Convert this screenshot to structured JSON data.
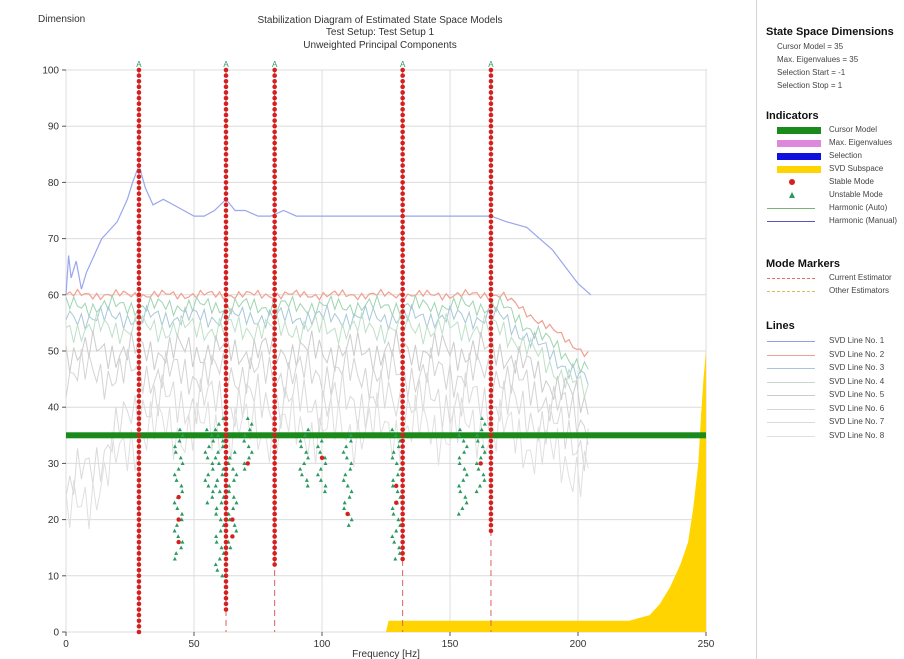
{
  "titles": {
    "dimension_label": "Dimension",
    "line1": "Stabilization Diagram of Estimated State Space Models",
    "line2": "Test Setup: Test Setup 1",
    "line3": "Unweighted Principal Components"
  },
  "chart_data": {
    "type": "scatter",
    "xlabel": "Frequency [Hz]",
    "ylabel": "Dimension",
    "xlim": [
      0,
      250
    ],
    "ylim": [
      0,
      100
    ],
    "x_ticks": [
      "0",
      "50",
      "100",
      "150",
      "200",
      "250"
    ],
    "y_ticks": [
      "0",
      "10",
      "20",
      "30",
      "40",
      "50",
      "60",
      "70",
      "80",
      "90",
      "100"
    ],
    "grid": true,
    "cursor_model": 35,
    "mode_frequencies": [
      28.5,
      62.5,
      81.5,
      131.5,
      166
    ],
    "mode_marker_label": "A",
    "stable_mode_stacks": [
      {
        "x": 28.5,
        "y_from": 0,
        "y_to": 100
      },
      {
        "x": 62.5,
        "y_from": 4,
        "y_to": 100
      },
      {
        "x": 81.5,
        "y_from": 12,
        "y_to": 100
      },
      {
        "x": 131.5,
        "y_from": 13,
        "y_to": 100
      },
      {
        "x": 166,
        "y_from": 18,
        "y_to": 100
      }
    ],
    "unstable_mode_clusters": [
      {
        "x": 44,
        "y_from": 13,
        "y_to": 36
      },
      {
        "x": 56,
        "y_from": 23,
        "y_to": 36
      },
      {
        "x": 60,
        "y_from": 10,
        "y_to": 38
      },
      {
        "x": 65,
        "y_from": 15,
        "y_to": 32
      },
      {
        "x": 71,
        "y_from": 29,
        "y_to": 38
      },
      {
        "x": 93,
        "y_from": 26,
        "y_to": 36
      },
      {
        "x": 100,
        "y_from": 25,
        "y_to": 34
      },
      {
        "x": 110,
        "y_from": 19,
        "y_to": 35
      },
      {
        "x": 129,
        "y_from": 13,
        "y_to": 36
      },
      {
        "x": 155,
        "y_from": 21,
        "y_to": 36
      },
      {
        "x": 162,
        "y_from": 25,
        "y_to": 38
      }
    ],
    "harmonic_manual_line": {
      "x": [
        0,
        1,
        2,
        4,
        6,
        8,
        10,
        12,
        14,
        16,
        18,
        20,
        22,
        24,
        26,
        28.5,
        31,
        34,
        38,
        42,
        46,
        50,
        54,
        58,
        62.5,
        66,
        70,
        75,
        80,
        85,
        90,
        100,
        110,
        120,
        130,
        140,
        150,
        160,
        166,
        172,
        180,
        190,
        200,
        205
      ],
      "y": [
        60,
        67,
        63,
        66,
        61,
        64,
        66,
        68,
        70,
        71,
        72,
        73,
        75,
        77,
        80,
        83,
        79,
        76,
        77,
        76,
        75,
        74,
        74,
        75,
        77,
        75,
        75,
        74,
        74,
        75,
        74,
        74,
        74,
        74,
        74,
        74,
        74,
        74,
        74,
        73,
        72,
        68,
        62,
        60
      ]
    },
    "svd_subspace_area": {
      "x": [
        125,
        126,
        220,
        228,
        232,
        236,
        240,
        243,
        245,
        247,
        248,
        249,
        250
      ],
      "y": [
        0,
        2,
        2,
        3,
        5,
        8,
        12,
        16,
        22,
        30,
        38,
        45,
        50
      ]
    }
  },
  "sidebar": {
    "state_space": {
      "heading": "State Space Dimensions",
      "items": [
        "Cursor Model = 35",
        "Max. Eigenvalues = 35",
        "Selection Start = -1",
        "Selection Stop = 1"
      ]
    },
    "indicators": {
      "heading": "Indicators",
      "items": [
        {
          "label": "Cursor Model",
          "color": "#1a8a1a"
        },
        {
          "label": "Max. Eigenvalues",
          "color": "#dd88dd"
        },
        {
          "label": "Selection",
          "color": "#1111dd"
        },
        {
          "label": "SVD Subspace",
          "color": "#ffd400"
        },
        {
          "label": "Stable Mode",
          "color": "#d42020"
        },
        {
          "label": "Unstable Mode",
          "color": "#2a9a60"
        },
        {
          "label": "Harmonic (Auto)",
          "color": "#77b477"
        },
        {
          "label": "Harmonic (Manual)",
          "color": "#5555bb"
        }
      ]
    },
    "mode_markers": {
      "heading": "Mode Markers",
      "items": [
        {
          "label": "Current Estimator",
          "color": "#e07060"
        },
        {
          "label": "Other Estimators",
          "color": "#d0c060"
        }
      ]
    },
    "lines": {
      "heading": "Lines",
      "items": [
        {
          "label": "SVD Line No. 1",
          "color": "#8fa0e8"
        },
        {
          "label": "SVD Line No. 2",
          "color": "#f0a090"
        },
        {
          "label": "SVD Line No. 3",
          "color": "#a8c8d8"
        },
        {
          "label": "SVD Line No. 4",
          "color": "#c8d8c8"
        },
        {
          "label": "SVD Line No. 5",
          "color": "#cccccc"
        },
        {
          "label": "SVD Line No. 6",
          "color": "#d4d4d4"
        },
        {
          "label": "SVD Line No. 7",
          "color": "#dadada"
        },
        {
          "label": "SVD Line No. 8",
          "color": "#e0e0e0"
        }
      ]
    }
  }
}
